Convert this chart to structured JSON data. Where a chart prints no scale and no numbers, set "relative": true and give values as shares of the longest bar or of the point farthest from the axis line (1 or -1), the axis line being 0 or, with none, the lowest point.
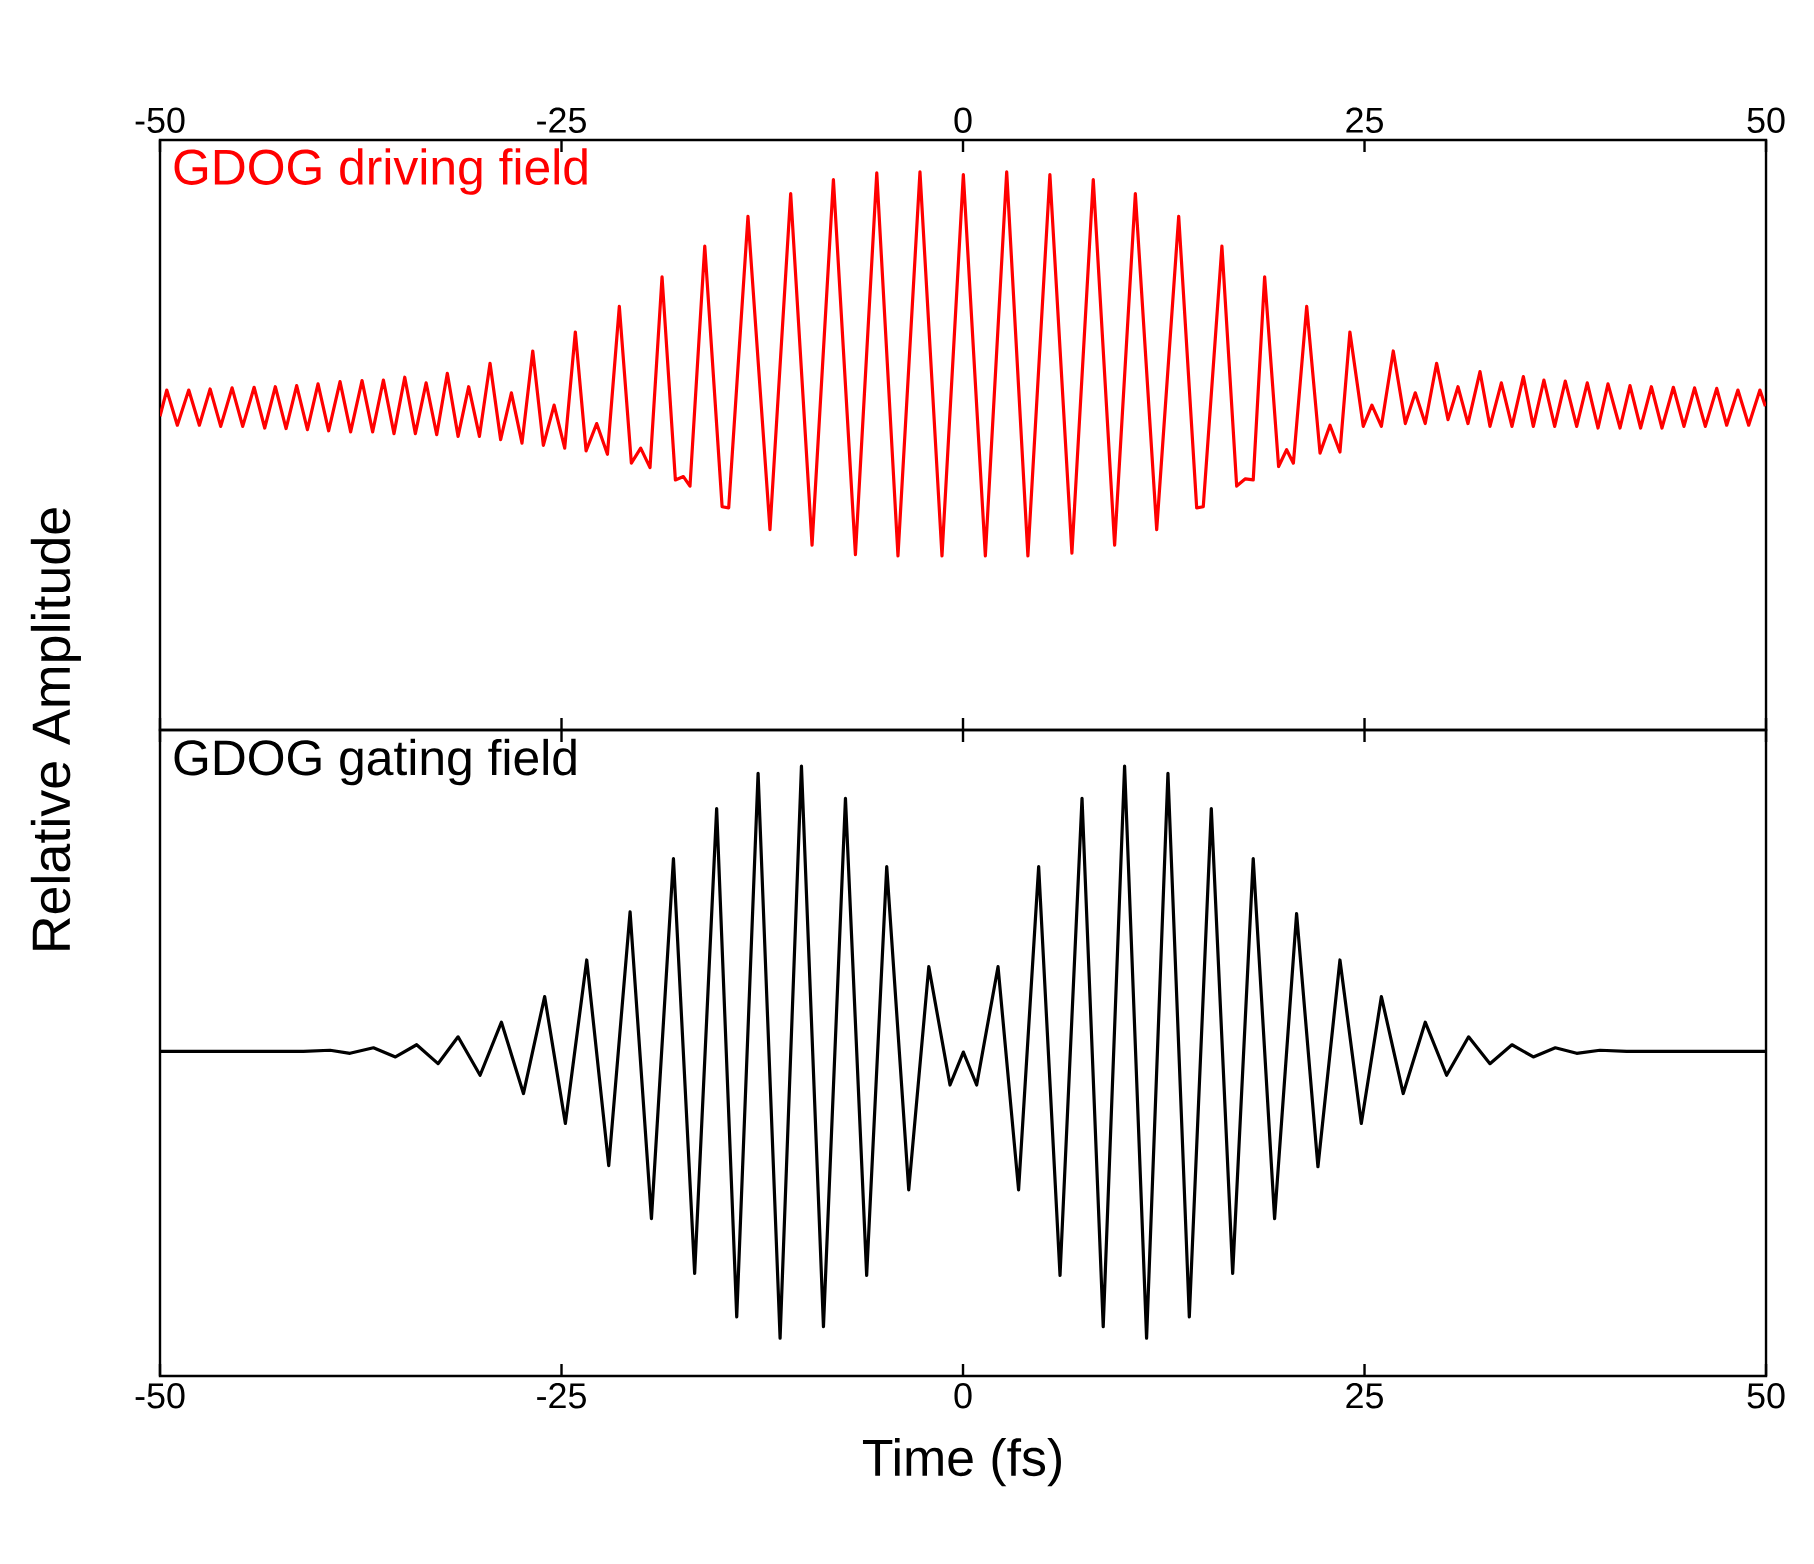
{
  "chart_data": [
    {
      "type": "line",
      "relative": true,
      "ylabel": "Relative Amplitude",
      "xlim": [
        -50,
        50
      ],
      "xticks": [
        -50,
        -25,
        0,
        25,
        50
      ],
      "series": [
        {
          "name": "GDOG driving field",
          "color": "#ff0000",
          "x": [
            -50.0,
            -49.58,
            -48.92,
            -48.21,
            -47.55,
            -46.88,
            -46.22,
            -45.51,
            -44.85,
            -44.14,
            -43.48,
            -42.82,
            -42.15,
            -41.49,
            -40.82,
            -40.16,
            -39.5,
            -38.79,
            -38.13,
            -37.42,
            -36.76,
            -36.09,
            -35.43,
            -34.76,
            -34.1,
            -33.43,
            -32.77,
            -32.11,
            -31.44,
            -30.78,
            -30.11,
            -29.45,
            -28.79,
            -28.12,
            -27.46,
            -26.79,
            -26.13,
            -25.46,
            -24.8,
            -24.14,
            -23.47,
            -22.81,
            -22.14,
            -21.4,
            -20.65,
            -20.07,
            -19.49,
            -18.74,
            -17.91,
            -17.41,
            -17.0,
            -16.08,
            -15.0,
            -14.59,
            -13.39,
            -12.02,
            -10.73,
            -9.4,
            -8.07,
            -6.7,
            -5.37,
            -4.05,
            -2.68,
            -1.31,
            0.02,
            1.39,
            2.72,
            4.04,
            5.41,
            6.78,
            8.11,
            9.44,
            10.73,
            12.06,
            13.43,
            14.55,
            14.96,
            16.12,
            17.04,
            17.58,
            18.07,
            18.78,
            19.65,
            20.15,
            20.57,
            21.4,
            22.23,
            22.85,
            23.47,
            24.09,
            24.92,
            25.46,
            26.05,
            26.79,
            27.54,
            28.16,
            28.78,
            29.49,
            30.2,
            30.82,
            31.44,
            32.19,
            32.81,
            33.52,
            34.18,
            34.89,
            35.51,
            36.17,
            36.84,
            37.5,
            38.21,
            38.87,
            39.54,
            40.16,
            40.91,
            41.53,
            42.19,
            42.86,
            43.52,
            44.23,
            44.89,
            45.55,
            46.22,
            46.93,
            47.55,
            48.25,
            48.92,
            49.62,
            49.96
          ],
          "values": [
            0.562,
            0.609,
            0.546,
            0.609,
            0.546,
            0.611,
            0.544,
            0.613,
            0.544,
            0.614,
            0.541,
            0.615,
            0.54,
            0.617,
            0.538,
            0.62,
            0.536,
            0.624,
            0.534,
            0.626,
            0.534,
            0.627,
            0.531,
            0.632,
            0.531,
            0.622,
            0.529,
            0.639,
            0.526,
            0.615,
            0.526,
            0.657,
            0.52,
            0.604,
            0.514,
            0.679,
            0.51,
            0.582,
            0.505,
            0.713,
            0.5,
            0.549,
            0.494,
            0.759,
            0.478,
            0.505,
            0.47,
            0.812,
            0.448,
            0.454,
            0.437,
            0.867,
            0.4,
            0.398,
            0.92,
            0.359,
            0.961,
            0.331,
            0.986,
            0.314,
            0.998,
            0.312,
            1.0,
            0.312,
            0.995,
            0.312,
            1.0,
            0.312,
            0.995,
            0.317,
            0.986,
            0.331,
            0.961,
            0.359,
            0.92,
            0.398,
            0.4,
            0.867,
            0.437,
            0.45,
            0.448,
            0.812,
            0.472,
            0.502,
            0.478,
            0.759,
            0.496,
            0.546,
            0.498,
            0.713,
            0.544,
            0.582,
            0.544,
            0.679,
            0.549,
            0.604,
            0.549,
            0.657,
            0.556,
            0.615,
            0.549,
            0.642,
            0.544,
            0.622,
            0.544,
            0.633,
            0.544,
            0.627,
            0.544,
            0.625,
            0.544,
            0.622,
            0.541,
            0.62,
            0.541,
            0.617,
            0.541,
            0.615,
            0.541,
            0.614,
            0.544,
            0.613,
            0.544,
            0.612,
            0.546,
            0.609,
            0.546,
            0.609,
            0.58
          ]
        }
      ]
    },
    {
      "type": "line",
      "relative": true,
      "xlabel": "Time (fs)",
      "xlim": [
        -50,
        50
      ],
      "xticks": [
        -50,
        -25,
        0,
        25,
        50
      ],
      "series": [
        {
          "name": "GDOG gating field",
          "color": "#000000",
          "x": [
            -50.0,
            -41.07,
            -39.41,
            -38.17,
            -36.71,
            -35.34,
            -34.02,
            -32.69,
            -31.44,
            -30.07,
            -28.74,
            -27.37,
            -26.05,
            -24.76,
            -23.43,
            -22.06,
            -20.73,
            -19.4,
            -18.03,
            -16.71,
            -15.34,
            -14.09,
            -12.76,
            -11.39,
            -10.06,
            -8.69,
            -7.32,
            -6.0,
            -4.75,
            -3.38,
            -2.13,
            -0.81,
            0.02,
            0.85,
            2.18,
            3.46,
            4.71,
            6.04,
            7.41,
            8.73,
            10.06,
            11.43,
            12.76,
            14.09,
            15.46,
            16.79,
            18.07,
            19.4,
            20.77,
            22.1,
            23.47,
            24.8,
            26.05,
            27.41,
            28.78,
            30.11,
            31.48,
            32.81,
            34.18,
            35.51,
            36.88,
            38.21,
            39.66,
            41.32,
            49.96
          ],
          "values": [
            0.532,
            0.532,
            0.534,
            0.529,
            0.538,
            0.523,
            0.543,
            0.512,
            0.556,
            0.493,
            0.58,
            0.463,
            0.622,
            0.414,
            0.682,
            0.345,
            0.761,
            0.258,
            0.848,
            0.168,
            0.93,
            0.097,
            0.988,
            0.062,
            1.0,
            0.081,
            0.947,
            0.165,
            0.835,
            0.305,
            0.671,
            0.477,
            0.531,
            0.477,
            0.671,
            0.305,
            0.835,
            0.165,
            0.947,
            0.081,
            1.0,
            0.062,
            0.988,
            0.097,
            0.93,
            0.168,
            0.848,
            0.258,
            0.758,
            0.343,
            0.682,
            0.414,
            0.622,
            0.463,
            0.58,
            0.493,
            0.556,
            0.512,
            0.543,
            0.523,
            0.538,
            0.529,
            0.534,
            0.532,
            0.532
          ]
        }
      ]
    }
  ]
}
